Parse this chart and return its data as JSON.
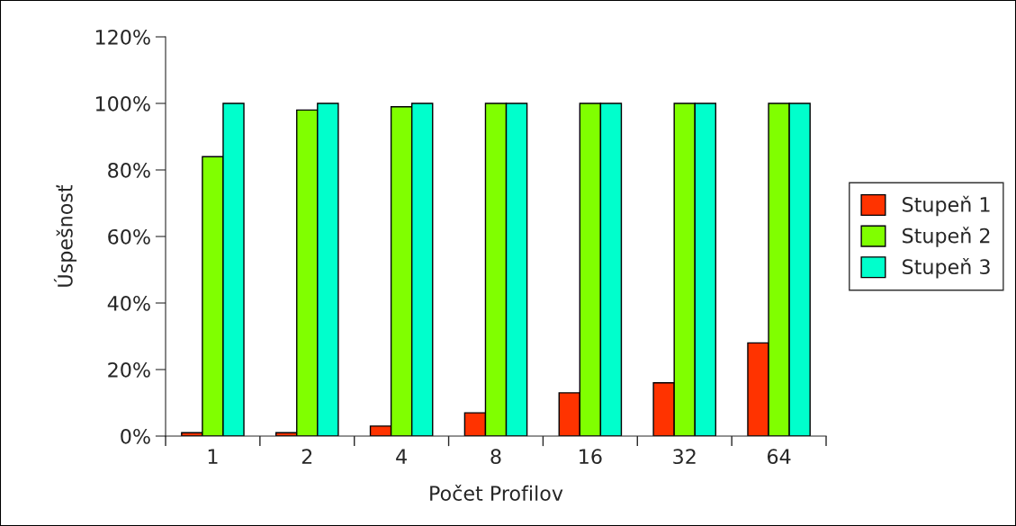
{
  "chart_data": {
    "type": "bar",
    "xlabel": "Počet Profilov",
    "ylabel": "Úspešnosť",
    "categories": [
      "1",
      "2",
      "4",
      "8",
      "16",
      "32",
      "64"
    ],
    "series": [
      {
        "name": "Stupeň 1",
        "color": "#ff3300",
        "values": [
          1,
          1,
          3,
          7,
          13,
          16,
          28
        ]
      },
      {
        "name": "Stupeň 2",
        "color": "#80ff00",
        "values": [
          84,
          98,
          99,
          100,
          100,
          100,
          100
        ]
      },
      {
        "name": "Stupeň 3",
        "color": "#00ffcc",
        "values": [
          100,
          100,
          100,
          100,
          100,
          100,
          100
        ]
      }
    ],
    "ylim": [
      0,
      120
    ],
    "yticks": [
      {
        "value": 0,
        "label": "0%"
      },
      {
        "value": 20,
        "label": "20%"
      },
      {
        "value": 40,
        "label": "40%"
      },
      {
        "value": 60,
        "label": "60%"
      },
      {
        "value": 80,
        "label": "80%"
      },
      {
        "value": 100,
        "label": "100%"
      },
      {
        "value": 120,
        "label": "120%"
      }
    ],
    "grid": false,
    "legend": "right"
  }
}
